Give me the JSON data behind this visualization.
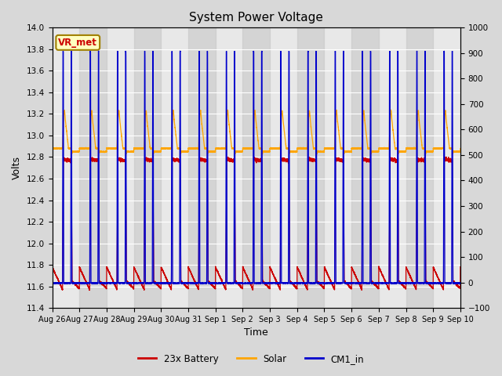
{
  "title": "System Power Voltage",
  "xlabel": "Time",
  "ylabel_left": "Volts",
  "ylim_left": [
    11.4,
    14.0
  ],
  "ylim_right": [
    -100,
    1000
  ],
  "yticks_left": [
    11.4,
    11.6,
    11.8,
    12.0,
    12.2,
    12.4,
    12.6,
    12.8,
    13.0,
    13.2,
    13.4,
    13.6,
    13.8,
    14.0
  ],
  "yticks_right": [
    -100,
    0,
    100,
    200,
    300,
    400,
    500,
    600,
    700,
    800,
    900,
    1000
  ],
  "xtick_labels": [
    "Aug 26",
    "Aug 27",
    "Aug 28",
    "Aug 29",
    "Aug 30",
    "Aug 31",
    "Sep 1",
    "Sep 2",
    "Sep 3",
    "Sep 4",
    "Sep 5",
    "Sep 6",
    "Sep 7",
    "Sep 8",
    "Sep 9",
    "Sep 10"
  ],
  "n_days": 15,
  "legend_labels": [
    "23x Battery",
    "Solar",
    "CM1_in"
  ],
  "legend_colors": [
    "#CC0000",
    "#FFA500",
    "#0000CC"
  ],
  "vr_met_label": "VR_met",
  "vr_met_bg": "#FFFFC0",
  "vr_met_border": "#A08000",
  "vr_met_text_color": "#CC0000",
  "fig_bg": "#D8D8D8",
  "plot_bg": "#E8E8E8",
  "band_color": "#C8C8C8",
  "band_alpha": 0.6
}
